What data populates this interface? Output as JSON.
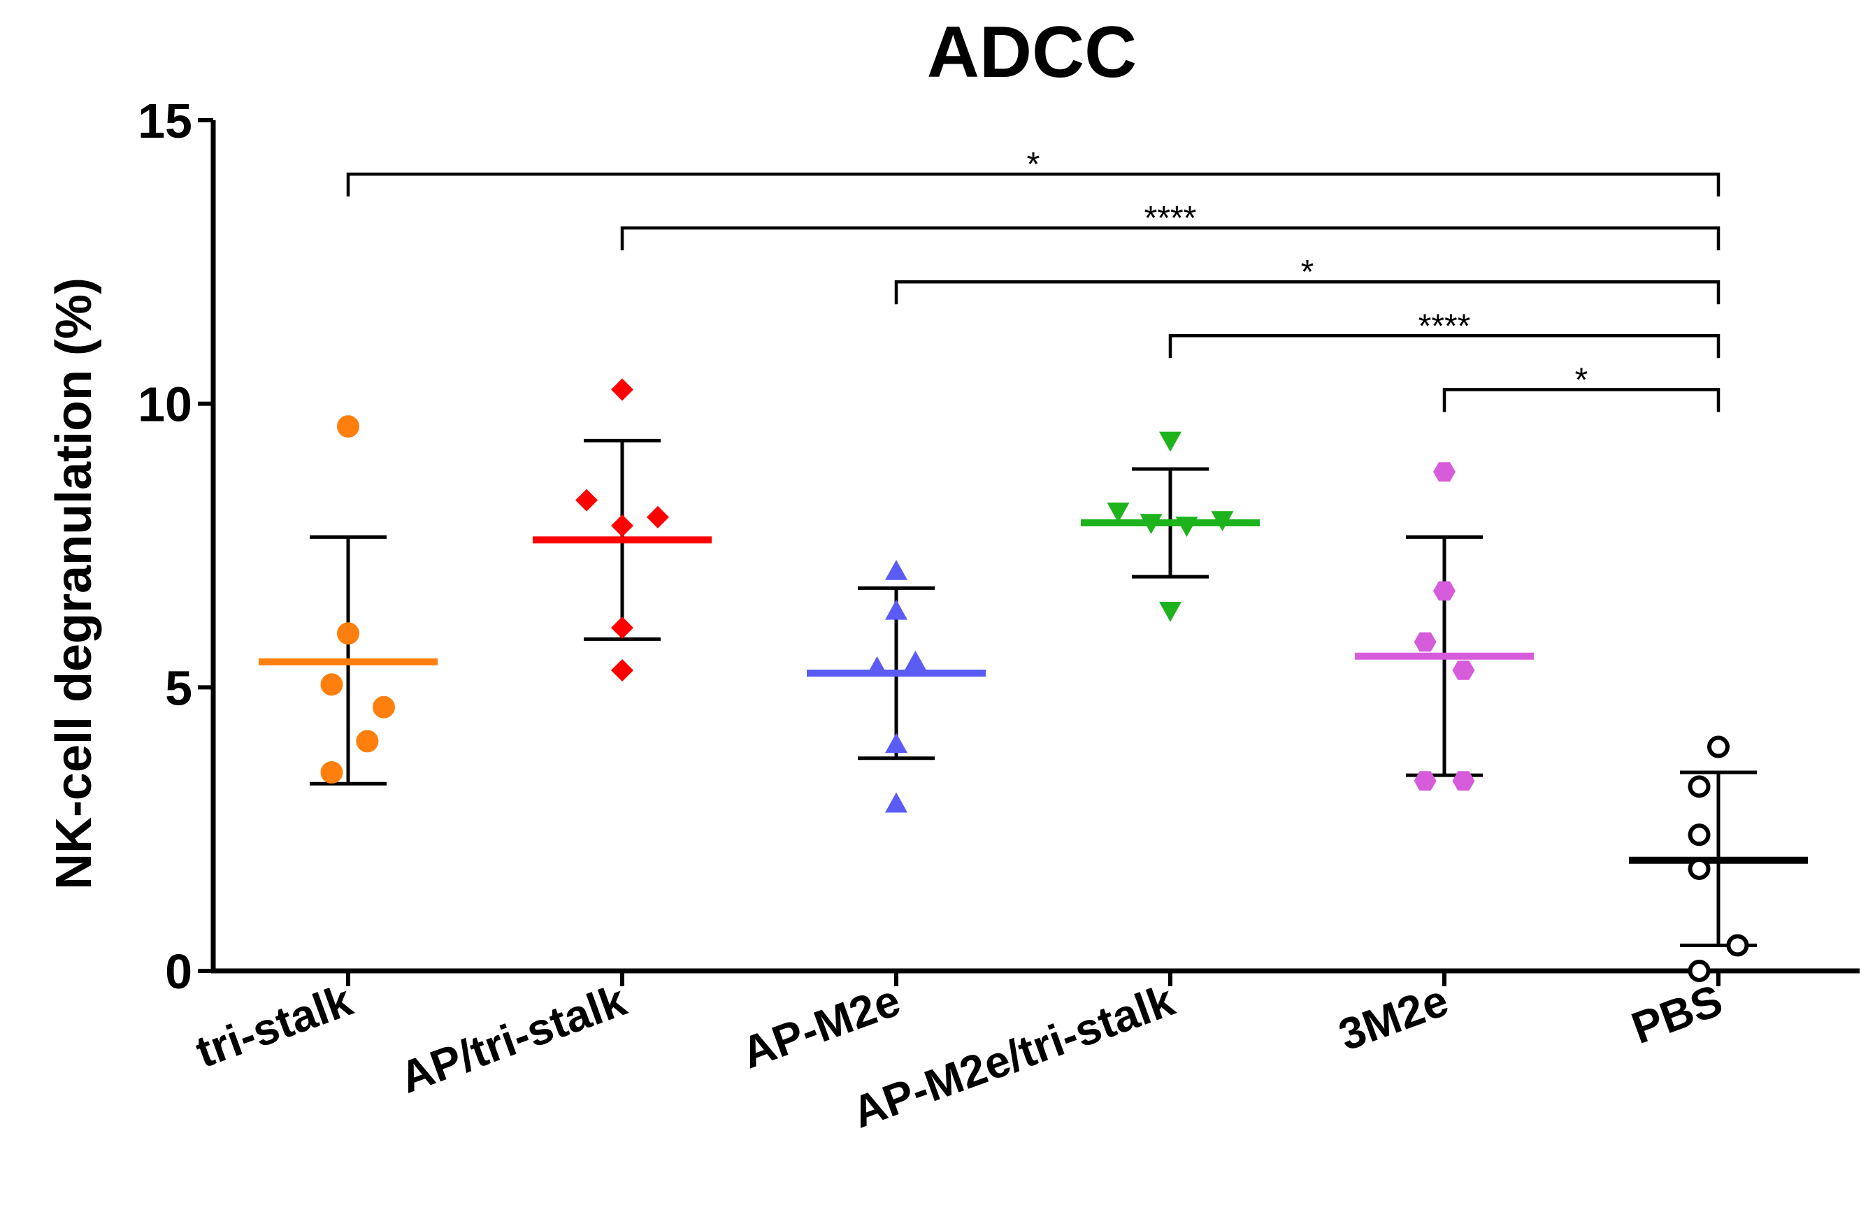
{
  "chart_data": {
    "type": "scatter",
    "title": "ADCC",
    "xlabel": "",
    "ylabel": "NK-cell degranulation (%)",
    "ylim": [
      0,
      15
    ],
    "yticks": [
      0,
      5,
      10,
      15
    ],
    "categories": [
      "tri-stalk",
      "AP/tri-stalk",
      "AP-M2e",
      "AP-M2e/tri-stalk",
      "3M2e",
      "PBS"
    ],
    "series": [
      {
        "name": "tri-stalk",
        "color": "#ff7f0e",
        "marker": "circle",
        "points": [
          [
            0.0,
            9.6
          ],
          [
            -0.06,
            5.05
          ],
          [
            0.0,
            5.95
          ],
          [
            0.13,
            4.65
          ],
          [
            0.07,
            4.05
          ],
          [
            -0.06,
            3.5
          ]
        ],
        "mean": 5.45,
        "sd_high": 7.65,
        "sd_low": 3.3
      },
      {
        "name": "AP/tri-stalk",
        "color": "#ff0000",
        "marker": "diamond",
        "points": [
          [
            0.0,
            10.25
          ],
          [
            -0.13,
            8.3
          ],
          [
            0.0,
            7.85
          ],
          [
            0.13,
            8.0
          ],
          [
            0.0,
            6.05
          ],
          [
            0.0,
            5.3
          ]
        ],
        "mean": 7.6,
        "sd_high": 9.35,
        "sd_low": 5.85
      },
      {
        "name": "AP-M2e",
        "color": "#5b5bf5",
        "marker": "triangle-up",
        "points": [
          [
            0.0,
            7.05
          ],
          [
            0.0,
            6.35
          ],
          [
            -0.07,
            5.35
          ],
          [
            0.07,
            5.45
          ],
          [
            0.0,
            4.0
          ],
          [
            0.0,
            2.95
          ]
        ],
        "mean": 5.25,
        "sd_high": 6.75,
        "sd_low": 3.75
      },
      {
        "name": "AP-M2e/tri-stalk",
        "color": "#1db31d",
        "marker": "triangle-down",
        "points": [
          [
            0.0,
            9.35
          ],
          [
            -0.19,
            8.1
          ],
          [
            -0.07,
            7.9
          ],
          [
            0.06,
            7.85
          ],
          [
            0.19,
            7.95
          ],
          [
            0.0,
            6.35
          ]
        ],
        "mean": 7.9,
        "sd_high": 8.85,
        "sd_low": 6.95
      },
      {
        "name": "3M2e",
        "color": "#d65cdb",
        "marker": "hexagon",
        "points": [
          [
            0.0,
            8.8
          ],
          [
            0.0,
            6.7
          ],
          [
            -0.07,
            5.8
          ],
          [
            0.07,
            5.3
          ],
          [
            -0.07,
            3.35
          ],
          [
            0.07,
            3.35
          ]
        ],
        "mean": 5.55,
        "sd_high": 7.65,
        "sd_low": 3.45
      },
      {
        "name": "PBS",
        "color": "#000000",
        "marker": "open-circle",
        "points": [
          [
            0.0,
            3.95
          ],
          [
            -0.07,
            3.25
          ],
          [
            -0.07,
            2.4
          ],
          [
            -0.07,
            1.8
          ],
          [
            0.07,
            0.45
          ],
          [
            -0.07,
            0.0
          ]
        ],
        "mean": 1.95,
        "sd_high": 3.5,
        "sd_low": 0.45
      }
    ],
    "significance": [
      {
        "from": "tri-stalk",
        "to": "PBS",
        "y": 14.05,
        "label": "*"
      },
      {
        "from": "AP/tri-stalk",
        "to": "PBS",
        "y": 13.1,
        "label": "****"
      },
      {
        "from": "AP-M2e",
        "to": "PBS",
        "y": 12.15,
        "label": "*"
      },
      {
        "from": "AP-M2e/tri-stalk",
        "to": "PBS",
        "y": 11.2,
        "label": "****"
      },
      {
        "from": "3M2e",
        "to": "PBS",
        "y": 10.25,
        "label": "*"
      }
    ]
  }
}
